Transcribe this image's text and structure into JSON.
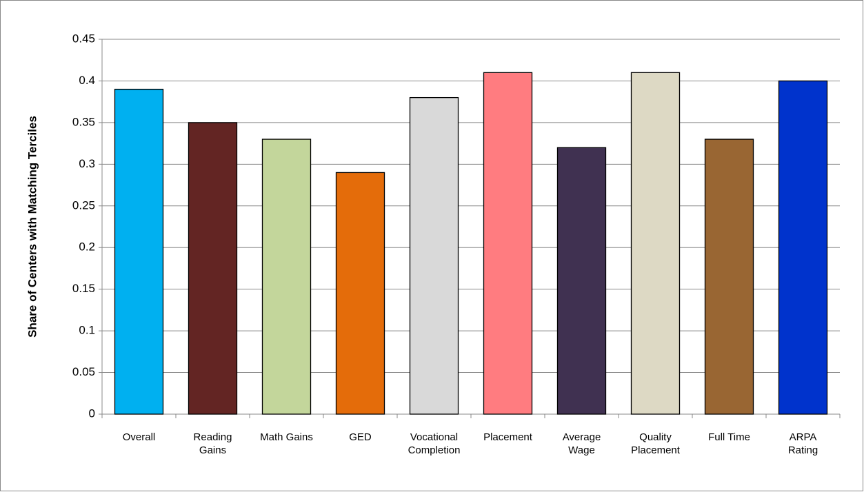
{
  "chart_data": {
    "type": "bar",
    "y_label": "Share of Centers with Matching Terciles",
    "categories": [
      "Overall",
      "Reading\nGains",
      "Math Gains",
      "GED",
      "Vocational\nCompletion",
      "Placement",
      "Average\nWage",
      "Quality\nPlacement",
      "Full Time",
      "ARPA\nRating"
    ],
    "values": [
      0.39,
      0.35,
      0.33,
      0.29,
      0.38,
      0.41,
      0.32,
      0.41,
      0.33,
      0.4
    ],
    "colors": [
      "#00b0f0",
      "#632523",
      "#c3d69b",
      "#e46c0a",
      "#d9d9d9",
      "#ff7c80",
      "#403151",
      "#ddd9c4",
      "#996633",
      "#0033cc"
    ],
    "ylim": [
      0,
      0.45
    ],
    "yticks": [
      0,
      0.05,
      0.1,
      0.15,
      0.2,
      0.25,
      0.3,
      0.35,
      0.4,
      0.45
    ],
    "grid": true
  }
}
